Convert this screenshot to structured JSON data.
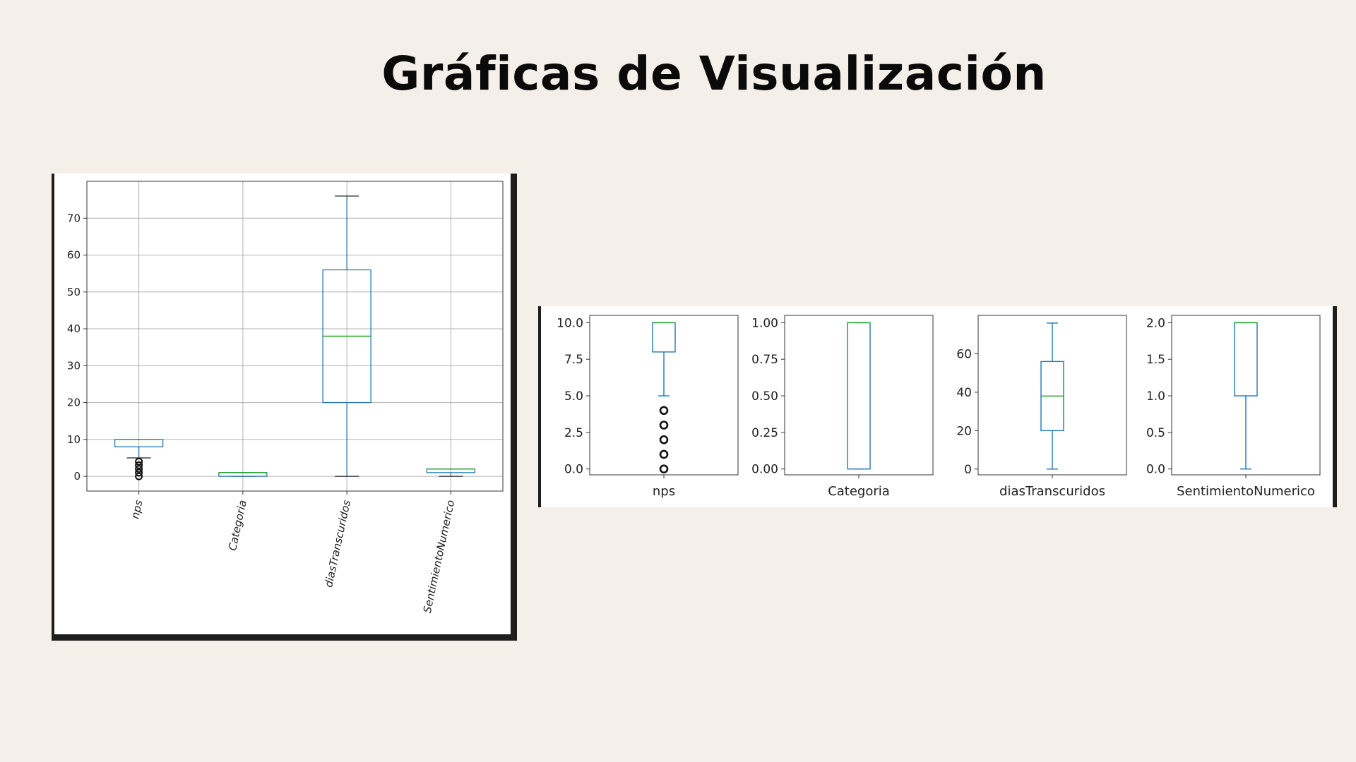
{
  "page": {
    "title": "Gráficas de Visualización"
  },
  "colors": {
    "box": "#1f77b4",
    "median": "#2ca02c",
    "grid": "#b0b0b0",
    "frame": "#1e1e1e"
  },
  "chart_data": [
    {
      "type": "box",
      "title": "",
      "xlabel": "",
      "ylabel": "",
      "grid": true,
      "ylim": [
        -4,
        80
      ],
      "yticks": [
        0,
        10,
        20,
        30,
        40,
        50,
        60,
        70
      ],
      "categories": [
        "nps",
        "Categoria",
        "diasTranscuridos",
        "SentimientoNumerico"
      ],
      "boxes": [
        {
          "name": "nps",
          "whislo": 5,
          "q1": 8,
          "med": 10,
          "q3": 10,
          "whishi": 10,
          "fliers": [
            0,
            1,
            2,
            3,
            4
          ]
        },
        {
          "name": "Categoria",
          "whislo": 0,
          "q1": 0,
          "med": 1,
          "q3": 1,
          "whishi": 1,
          "fliers": []
        },
        {
          "name": "diasTranscuridos",
          "whislo": 0,
          "q1": 20,
          "med": 38,
          "q3": 56,
          "whishi": 76,
          "fliers": []
        },
        {
          "name": "SentimientoNumerico",
          "whislo": 0,
          "q1": 1,
          "med": 2,
          "q3": 2,
          "whishi": 2,
          "fliers": []
        }
      ]
    },
    {
      "type": "box",
      "title": "",
      "grid": false,
      "subplots": [
        {
          "name": "nps",
          "ylim": [
            -0.4,
            10.5
          ],
          "yticks": [
            "0.0",
            "2.5",
            "5.0",
            "7.5",
            "10.0"
          ],
          "whislo": 5,
          "q1": 8,
          "med": 10,
          "q3": 10,
          "whishi": 10,
          "fliers": [
            0,
            1,
            2,
            3,
            4
          ]
        },
        {
          "name": "Categoria",
          "ylim": [
            -0.04,
            1.05
          ],
          "yticks": [
            "0.00",
            "0.25",
            "0.50",
            "0.75",
            "1.00"
          ],
          "whislo": 0,
          "q1": 0,
          "med": 1,
          "q3": 1,
          "whishi": 1,
          "fliers": []
        },
        {
          "name": "diasTranscuridos",
          "ylim": [
            -3,
            80
          ],
          "yticks": [
            "0",
            "20",
            "40",
            "60"
          ],
          "whislo": 0,
          "q1": 20,
          "med": 38,
          "q3": 56,
          "whishi": 76,
          "fliers": []
        },
        {
          "name": "SentimientoNumerico",
          "ylim": [
            -0.08,
            2.1
          ],
          "yticks": [
            "0.0",
            "0.5",
            "1.0",
            "1.5",
            "2.0"
          ],
          "whislo": 0,
          "q1": 1,
          "med": 2,
          "q3": 2,
          "whishi": 2,
          "fliers": []
        }
      ]
    }
  ]
}
